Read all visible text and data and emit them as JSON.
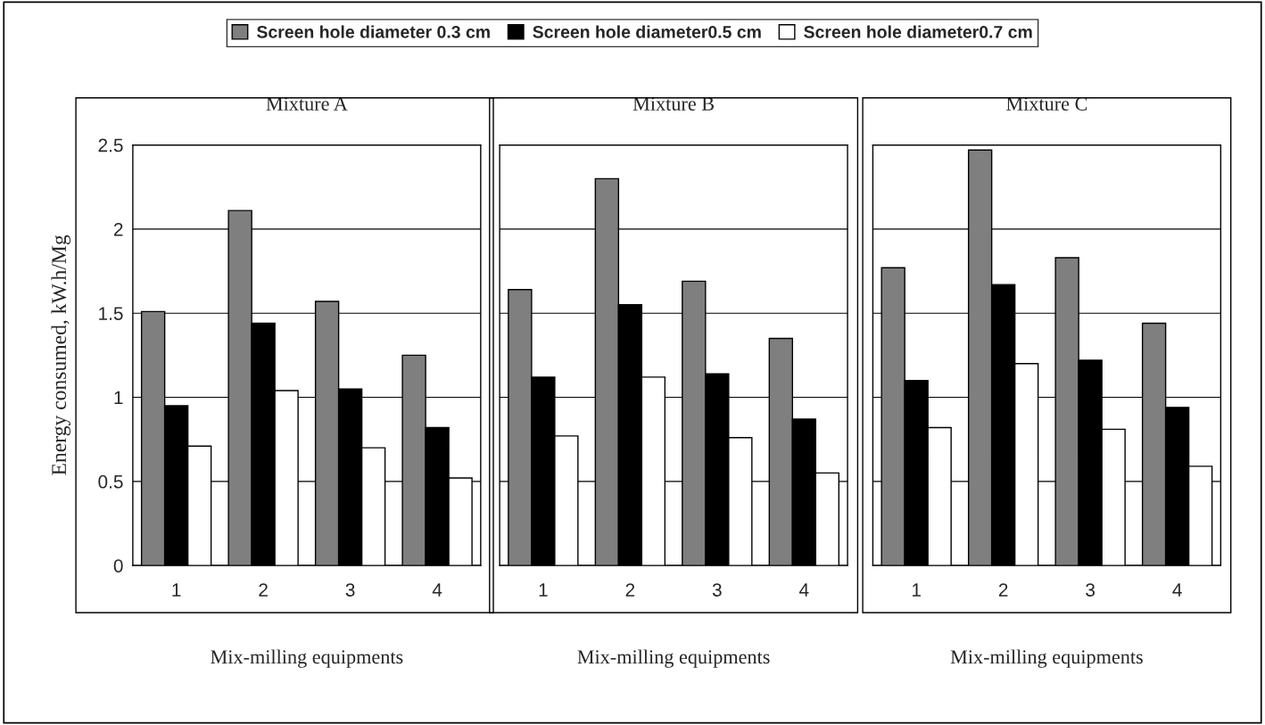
{
  "chart_data": [
    {
      "type": "bar",
      "title": "Mixture A",
      "xlabel": "Mix-milling equipments",
      "ylabel": "Energy consumed, kW.h/Mg",
      "categories": [
        "1",
        "2",
        "3",
        "4"
      ],
      "series": [
        {
          "name": "Screen hole diameter 0.3 cm",
          "color": "#7f7f7f",
          "values": [
            1.51,
            2.11,
            1.57,
            1.25
          ]
        },
        {
          "name": "Screen hole diameter0.5 cm",
          "color": "#000000",
          "values": [
            0.95,
            1.44,
            1.05,
            0.82
          ]
        },
        {
          "name": "Screen hole diameter0.7 cm",
          "color": "#ffffff",
          "values": [
            0.71,
            1.04,
            0.7,
            0.52
          ]
        }
      ],
      "ylim": [
        0,
        2.5
      ],
      "yticks": [
        0,
        0.5,
        1,
        1.5,
        2,
        2.5
      ],
      "grid": "y",
      "legend": "top"
    },
    {
      "type": "bar",
      "title": "Mixture B",
      "xlabel": "Mix-milling equipments",
      "categories": [
        "1",
        "2",
        "3",
        "4"
      ],
      "series": [
        {
          "color": "#7f7f7f",
          "values": [
            1.64,
            2.3,
            1.69,
            1.35
          ]
        },
        {
          "color": "#000000",
          "values": [
            1.12,
            1.55,
            1.14,
            0.87
          ]
        },
        {
          "color": "#ffffff",
          "values": [
            0.77,
            1.12,
            0.76,
            0.55
          ]
        }
      ],
      "ylim": [
        0,
        2.5
      ],
      "yticks": [
        0,
        0.5,
        1,
        1.5,
        2,
        2.5
      ],
      "grid": "y",
      "tick_labels": "x"
    },
    {
      "type": "bar",
      "title": "Mixture C",
      "xlabel": "Mix-milling equipments",
      "categories": [
        "1",
        "2",
        "3",
        "4"
      ],
      "series": [
        {
          "color": "#7f7f7f",
          "values": [
            1.77,
            2.47,
            1.83,
            1.44
          ]
        },
        {
          "color": "#000000",
          "values": [
            1.1,
            1.67,
            1.22,
            0.94
          ]
        },
        {
          "color": "#ffffff",
          "values": [
            0.82,
            1.2,
            0.81,
            0.59
          ]
        }
      ],
      "ylim": [
        0,
        2.5
      ],
      "yticks": [
        0,
        0.5,
        1,
        1.5,
        2,
        2.5
      ],
      "grid": "y",
      "tick_labels": "x"
    }
  ]
}
